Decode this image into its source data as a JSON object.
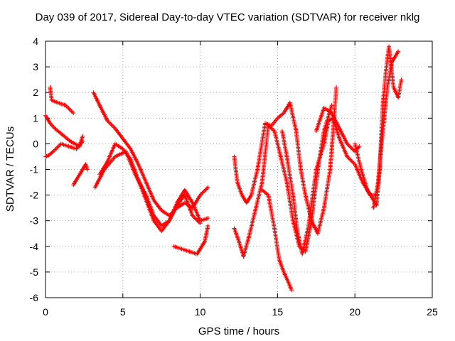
{
  "chart_data": {
    "type": "scatter",
    "title": "Day 039 of 2017, Sidereal Day-to-day VTEC variation (SDTVAR) for receiver nklg",
    "xlabel": "GPS time / hours",
    "ylabel": "SDTVAR / TECUs",
    "xlim": [
      0,
      25
    ],
    "ylim": [
      -6,
      4
    ],
    "xticks": [
      "0",
      "5",
      "10",
      "15",
      "20",
      "25"
    ],
    "yticks": [
      "4",
      "3",
      "2",
      "1",
      "0",
      "-1",
      "-2",
      "-3",
      "-4",
      "-5",
      "-6"
    ],
    "grid": true,
    "marker": "+",
    "marker_color": "#ff0000",
    "series": [
      {
        "x": [
          0.0,
          0.2,
          0.5,
          1.0,
          1.5,
          2.0,
          2.4
        ],
        "y": [
          -0.5,
          -0.45,
          -0.3,
          0.0,
          -0.1,
          -0.2,
          0.1
        ]
      },
      {
        "x": [
          0.0,
          0.3,
          0.6,
          1.0,
          1.6,
          2.2,
          2.4
        ],
        "y": [
          1.1,
          0.8,
          0.6,
          0.4,
          0.1,
          -0.1,
          0.3
        ]
      },
      {
        "x": [
          0.3,
          0.4,
          0.8,
          1.3,
          1.8
        ],
        "y": [
          2.2,
          1.7,
          1.6,
          1.5,
          1.2
        ]
      },
      {
        "x": [
          1.8,
          2.1,
          2.4,
          2.6,
          2.7
        ],
        "y": [
          -1.6,
          -1.3,
          -1.0,
          -0.8,
          -1.0
        ]
      },
      {
        "x": [
          3.1,
          3.5,
          4.0,
          4.5,
          5.0,
          5.5,
          6.0,
          6.5,
          7.0,
          7.5,
          8.0,
          8.5,
          9.0,
          9.5,
          10.0,
          10.5
        ],
        "y": [
          2.0,
          1.5,
          0.9,
          0.6,
          0.2,
          -0.2,
          -0.8,
          -1.5,
          -2.2,
          -2.6,
          -2.8,
          -2.5,
          -2.3,
          -2.5,
          -2.0,
          -1.7
        ]
      },
      {
        "x": [
          3.2,
          3.8,
          4.5,
          5.2,
          5.8,
          6.5,
          7.0,
          7.5,
          8.0,
          8.5,
          9.0,
          9.5,
          10.0
        ],
        "y": [
          -1.7,
          -1.0,
          -0.5,
          -0.3,
          -1.2,
          -2.0,
          -2.8,
          -3.2,
          -3.0,
          -2.4,
          -2.0,
          -2.8,
          -3.1
        ]
      },
      {
        "x": [
          3.5,
          4.0,
          4.5,
          5.0,
          5.5,
          6.0,
          6.5,
          7.0,
          7.5,
          8.0,
          8.5,
          9.0,
          9.5,
          10.0,
          10.5
        ],
        "y": [
          -1.2,
          -0.7,
          0.0,
          -0.2,
          -0.6,
          -1.4,
          -2.2,
          -3.0,
          -3.4,
          -3.0,
          -2.3,
          -1.8,
          -2.3,
          -3.0,
          -2.9
        ]
      },
      {
        "x": [
          8.3,
          8.8,
          9.3,
          9.8,
          10.3,
          10.5
        ],
        "y": [
          -4.0,
          -4.1,
          -4.2,
          -4.3,
          -3.8,
          -3.2
        ]
      },
      {
        "x": [
          12.2,
          12.4,
          12.7,
          13.0,
          13.3,
          13.7,
          14.2,
          14.6,
          15.0,
          15.4,
          15.8,
          16.2,
          16.5,
          16.8,
          17.2,
          17.6,
          18.0,
          18.4,
          18.8
        ],
        "y": [
          -0.5,
          -1.5,
          -2.0,
          -2.3,
          -2.0,
          -1.0,
          0.8,
          0.7,
          1.0,
          1.2,
          1.6,
          0.5,
          -1.0,
          -2.0,
          -3.0,
          -3.5,
          -2.5,
          -1.0,
          2.2
        ]
      },
      {
        "x": [
          12.2,
          12.5,
          12.8,
          13.2,
          13.6,
          14.0,
          14.4,
          14.8,
          15.2,
          15.6,
          16.0,
          16.4,
          16.8,
          17.2,
          17.6,
          18.0,
          18.5
        ],
        "y": [
          -3.3,
          -3.8,
          -4.4,
          -3.5,
          -2.5,
          -1.5,
          0.7,
          0.5,
          -0.5,
          -1.5,
          -3.0,
          -4.0,
          -4.2,
          -3.0,
          -1.0,
          0.5,
          1.5
        ]
      },
      {
        "x": [
          14.0,
          14.4,
          14.8,
          15.1,
          15.4,
          15.7,
          15.9
        ],
        "y": [
          -1.8,
          -2.0,
          -3.3,
          -4.5,
          -5.0,
          -5.4,
          -5.7
        ]
      },
      {
        "x": [
          15.3,
          15.6,
          16.0,
          16.3,
          16.6,
          17.0,
          17.5,
          18.0,
          18.3,
          18.6,
          19.0,
          19.5,
          20.0,
          20.5,
          21.0,
          21.3
        ],
        "y": [
          0.5,
          -0.5,
          -2.0,
          -3.5,
          -4.3,
          -3.2,
          -1.0,
          0.0,
          0.9,
          1.0,
          0.2,
          -0.5,
          -0.8,
          -1.5,
          -2.0,
          -2.0
        ]
      },
      {
        "x": [
          17.5,
          18.0,
          18.5,
          19.0,
          19.5,
          20.0,
          20.3
        ],
        "y": [
          0.5,
          1.4,
          1.2,
          0.6,
          0.0,
          -0.3,
          -0.1
        ]
      },
      {
        "x": [
          20.0,
          20.4,
          20.8,
          21.2,
          21.4,
          21.6,
          21.8,
          22.0,
          22.2,
          22.5,
          22.8,
          23.0
        ],
        "y": [
          0.0,
          -1.0,
          -1.8,
          -2.2,
          -2.4,
          -1.0,
          1.5,
          2.8,
          3.8,
          2.2,
          1.8,
          2.5
        ]
      },
      {
        "x": [
          21.2,
          21.5,
          21.8,
          22.1,
          22.4,
          22.8
        ],
        "y": [
          -2.5,
          -1.5,
          0.5,
          2.2,
          3.2,
          3.6
        ]
      }
    ]
  }
}
